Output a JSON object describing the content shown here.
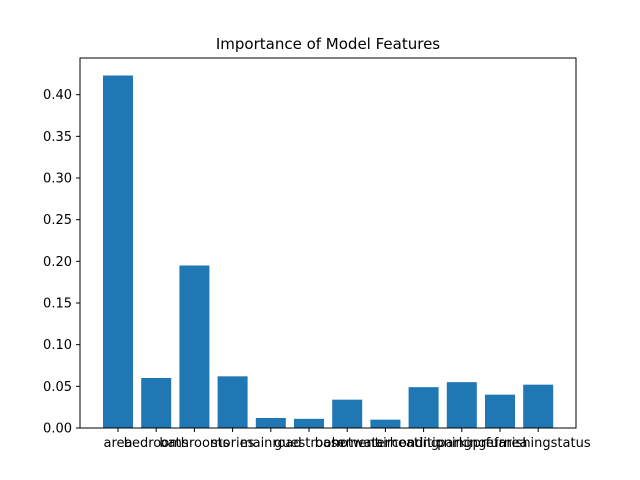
{
  "chart_data": {
    "type": "bar",
    "title": "Importance of Model Features",
    "xlabel": "",
    "ylabel": "",
    "categories": [
      "area",
      "bedrooms",
      "bathrooms",
      "stories",
      "mainroad",
      "guestroom",
      "basement",
      "hotwaterheating",
      "airconditioning",
      "parking",
      "prefarea",
      "furnishingstatus"
    ],
    "values": [
      0.423,
      0.06,
      0.195,
      0.062,
      0.012,
      0.011,
      0.034,
      0.01,
      0.049,
      0.055,
      0.04,
      0.052
    ],
    "ylim": [
      0,
      0.444
    ],
    "yticks": [
      0.0,
      0.05,
      0.1,
      0.15,
      0.2,
      0.25,
      0.3,
      0.35,
      0.4
    ],
    "ytick_labels": [
      "0.00",
      "0.05",
      "0.10",
      "0.15",
      "0.20",
      "0.25",
      "0.30",
      "0.35",
      "0.40"
    ],
    "bar_color": "#1f77b4",
    "grid": false,
    "legend": "none"
  }
}
